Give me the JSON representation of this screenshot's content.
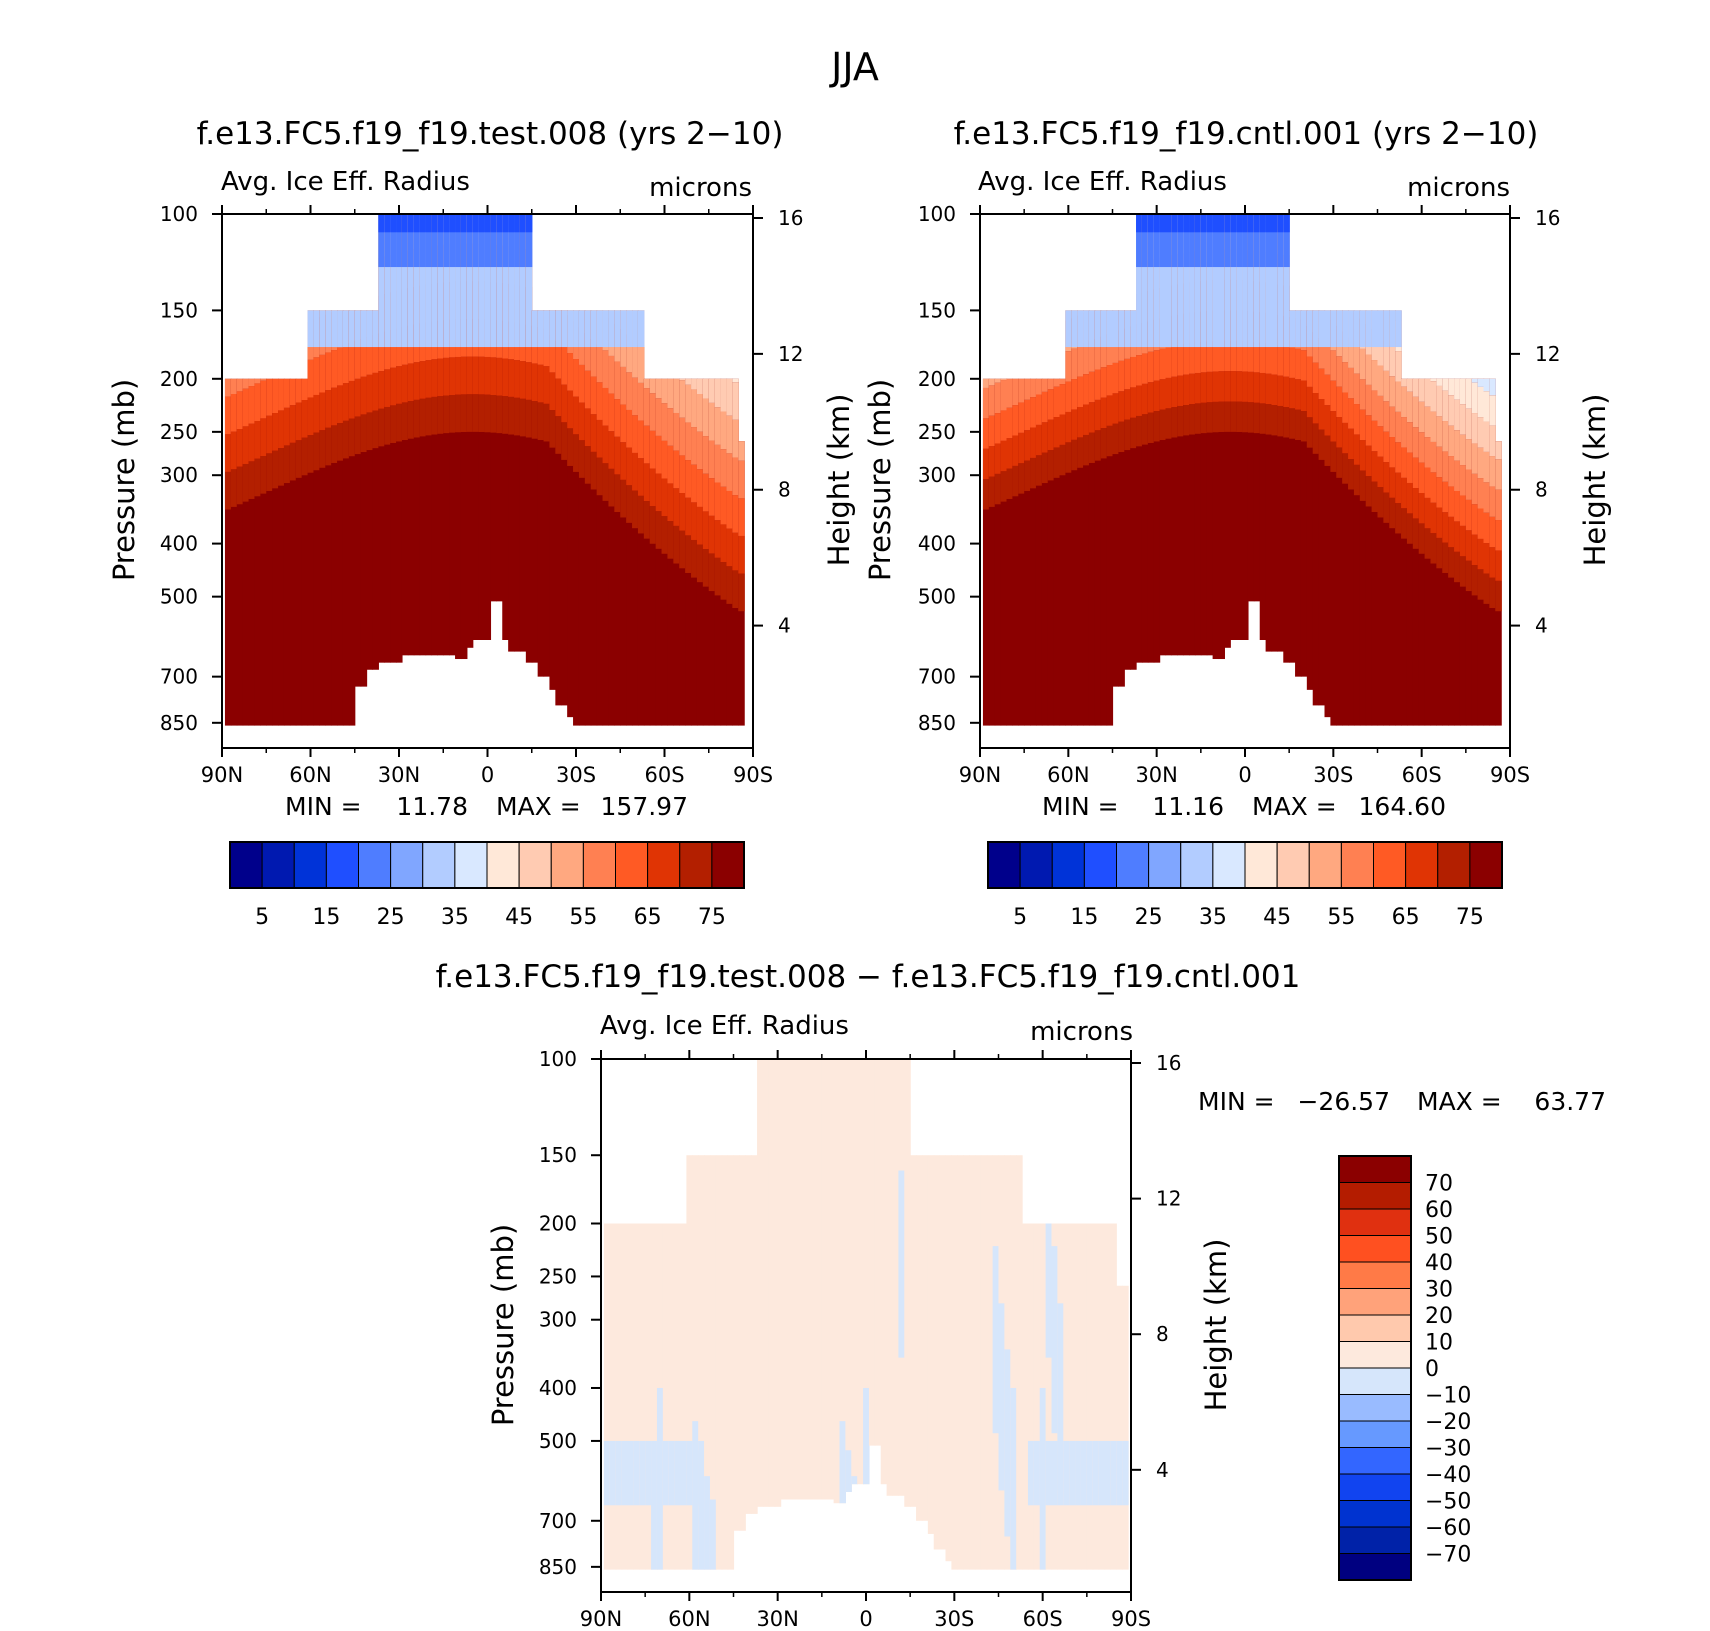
{
  "figure_title": "JJA",
  "colors": {
    "abs_levels": [
      "#00008b",
      "#0019b0",
      "#0033d8",
      "#1f4fff",
      "#4f7dff",
      "#80a6ff",
      "#b2ccff",
      "#d9e8ff",
      "#ffe8d8",
      "#ffcbb2",
      "#ffa880",
      "#ff8052",
      "#ff5a24",
      "#e03404",
      "#b31f00",
      "#8b0000"
    ],
    "diff_levels": [
      "#000080",
      "#0022a8",
      "#0033d0",
      "#1144f0",
      "#3366ff",
      "#6699ff",
      "#99bbff",
      "#d6e6fb",
      "#fde9dd",
      "#ffc9ad",
      "#ffa27a",
      "#ff7a47",
      "#ff5020",
      "#e03010",
      "#b41c00",
      "#8b0000"
    ]
  },
  "chart_data": [
    {
      "type": "heatmap",
      "title": "f.e13.FC5.f19_f19.test.008 (yrs 2−10)",
      "left_label": "Avg. Ice Eff. Radius",
      "right_label": "microns",
      "xlabel": "",
      "ylabel": "Pressure (mb)",
      "y2label": "Height (km)",
      "x_ticks": [
        "90N",
        "60N",
        "30N",
        "0",
        "30S",
        "60S",
        "90S"
      ],
      "y_ticks": [
        100,
        150,
        200,
        250,
        300,
        400,
        500,
        700,
        850
      ],
      "y2_ticks": [
        16,
        12,
        8,
        4
      ],
      "stats": {
        "min_label": "MIN =",
        "min": "11.78",
        "max_label": "MAX =",
        "max": "157.97"
      },
      "colorbar_labels": [
        "5",
        "15",
        "25",
        "35",
        "45",
        "55",
        "65",
        "75"
      ],
      "colorbar_levels": [
        0,
        5,
        10,
        15,
        20,
        25,
        30,
        35,
        40,
        45,
        50,
        55,
        60,
        65,
        70,
        75,
        80
      ]
    },
    {
      "type": "heatmap",
      "title": "f.e13.FC5.f19_f19.cntl.001 (yrs 2−10)",
      "left_label": "Avg. Ice Eff. Radius",
      "right_label": "microns",
      "xlabel": "",
      "ylabel": "Pressure (mb)",
      "y2label": "Height (km)",
      "x_ticks": [
        "90N",
        "60N",
        "30N",
        "0",
        "30S",
        "60S",
        "90S"
      ],
      "y_ticks": [
        100,
        150,
        200,
        250,
        300,
        400,
        500,
        700,
        850
      ],
      "y2_ticks": [
        16,
        12,
        8,
        4
      ],
      "stats": {
        "min_label": "MIN =",
        "min": "11.16",
        "max_label": "MAX =",
        "max": "164.60"
      },
      "colorbar_labels": [
        "5",
        "15",
        "25",
        "35",
        "45",
        "55",
        "65",
        "75"
      ],
      "colorbar_levels": [
        0,
        5,
        10,
        15,
        20,
        25,
        30,
        35,
        40,
        45,
        50,
        55,
        60,
        65,
        70,
        75,
        80
      ]
    },
    {
      "type": "heatmap",
      "title": "f.e13.FC5.f19_f19.test.008 − f.e13.FC5.f19_f19.cntl.001",
      "left_label": "Avg. Ice Eff. Radius",
      "right_label": "microns",
      "xlabel": "",
      "ylabel": "Pressure (mb)",
      "y2label": "Height (km)",
      "x_ticks": [
        "90N",
        "60N",
        "30N",
        "0",
        "30S",
        "60S",
        "90S"
      ],
      "y_ticks": [
        100,
        150,
        200,
        250,
        300,
        400,
        500,
        700,
        850
      ],
      "y2_ticks": [
        16,
        12,
        8,
        4
      ],
      "stats": {
        "min_label": "MIN =",
        "min": "−26.57",
        "max_label": "MAX =",
        "max": "63.77"
      },
      "colorbar_labels": [
        "70",
        "60",
        "50",
        "40",
        "30",
        "20",
        "10",
        "0",
        "−10",
        "−20",
        "−30",
        "−40",
        "−50",
        "−60",
        "−70"
      ],
      "colorbar_levels": [
        -80,
        -70,
        -60,
        -50,
        -40,
        -30,
        -20,
        -10,
        0,
        10,
        20,
        30,
        40,
        50,
        60,
        70,
        80
      ]
    }
  ]
}
